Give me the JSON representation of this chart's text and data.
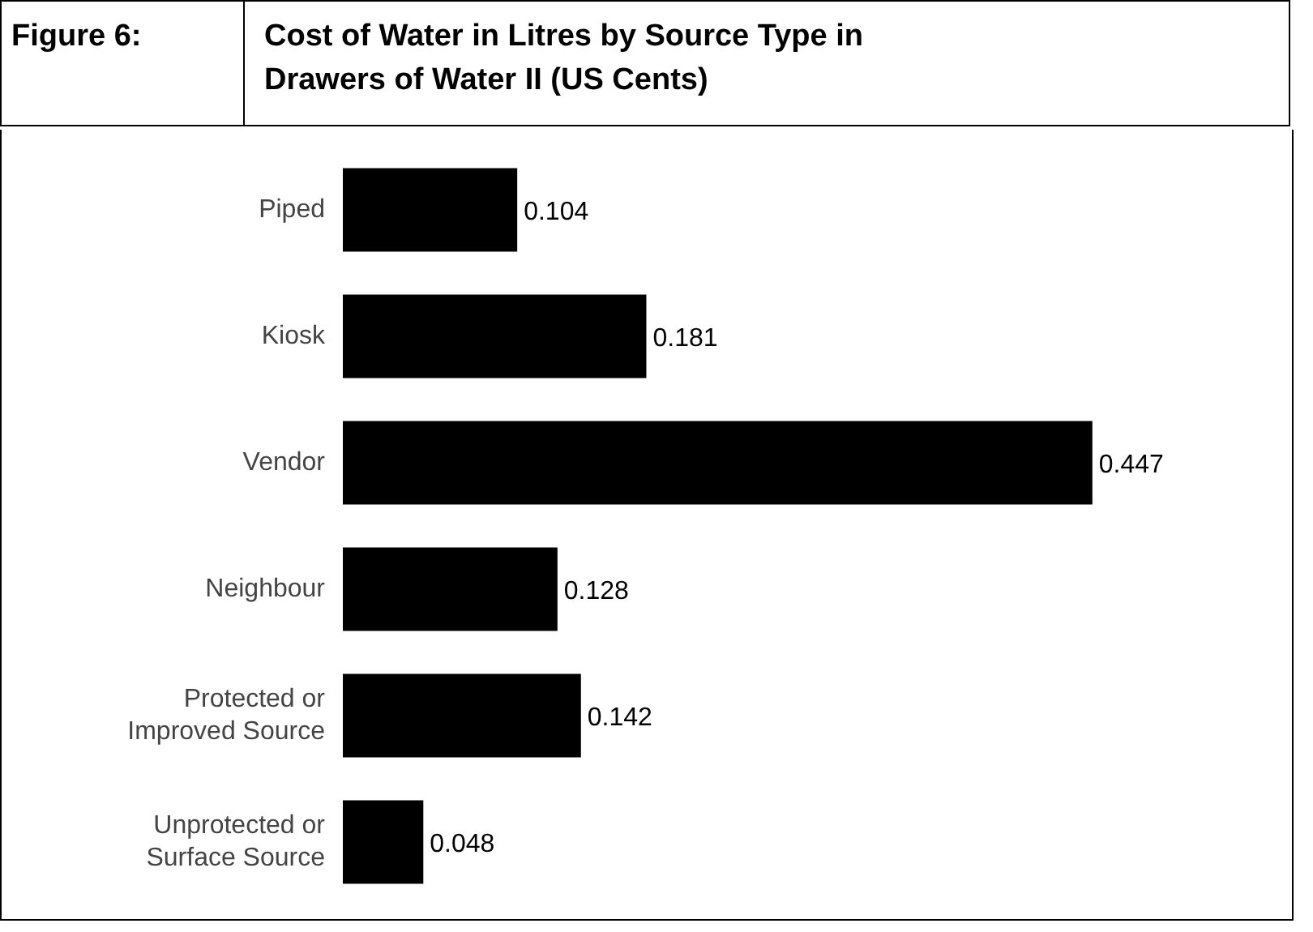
{
  "chart_data": {
    "type": "bar",
    "orientation": "horizontal",
    "title": "Cost of Water in Litres by Source Type in Drawers of Water II (US Cents)",
    "annotations": [
      "Figure 6:"
    ],
    "categories": [
      "Piped",
      "Kiosk",
      "Vendor",
      "Neighbour",
      "Protected or Improved Source",
      "Unprotected or Surface Source"
    ],
    "values": [
      0.104,
      0.181,
      0.447,
      0.128,
      0.142,
      0.048
    ],
    "color": "#000000",
    "data_labels": true,
    "grid": false
  }
}
